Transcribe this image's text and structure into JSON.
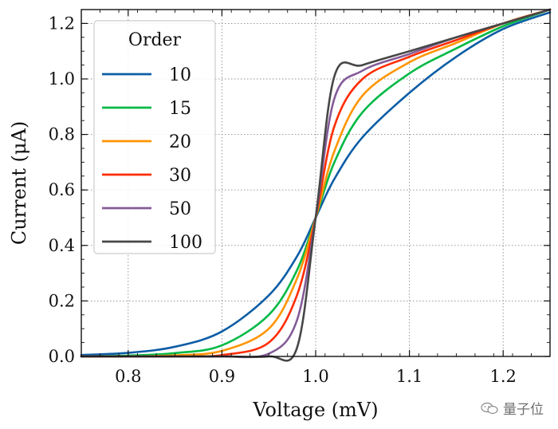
{
  "chart_data": {
    "type": "line",
    "xlabel": "Voltage (mV)",
    "ylabel": "Current (μA)",
    "xlim": [
      0.75,
      1.25
    ],
    "ylim": [
      0.0,
      1.25
    ],
    "xticks": [
      "0.8",
      "0.9",
      "1.0",
      "1.1",
      "1.2"
    ],
    "yticks": [
      "0.0",
      "0.2",
      "0.4",
      "0.6",
      "0.8",
      "1.0",
      "1.2"
    ],
    "grid": true,
    "legend": {
      "title": "Order",
      "position": "upper-left"
    },
    "x": [
      0.75,
      0.8,
      0.85,
      0.9,
      0.95,
      0.98,
      1.0,
      1.02,
      1.05,
      1.1,
      1.15,
      1.2,
      1.25
    ],
    "series": [
      {
        "name": "10",
        "color": "#0C5DA5",
        "values": [
          0.005,
          0.013,
          0.035,
          0.09,
          0.22,
          0.36,
          0.5,
          0.64,
          0.79,
          0.95,
          1.08,
          1.18,
          1.24
        ]
      },
      {
        "name": "15",
        "color": "#00B945",
        "values": [
          0.0,
          0.003,
          0.012,
          0.04,
          0.15,
          0.31,
          0.5,
          0.7,
          0.88,
          1.02,
          1.11,
          1.19,
          1.25
        ]
      },
      {
        "name": "20",
        "color": "#FF9500",
        "values": [
          0.0,
          0.0,
          0.004,
          0.02,
          0.1,
          0.28,
          0.5,
          0.74,
          0.94,
          1.06,
          1.13,
          1.2,
          1.25
        ]
      },
      {
        "name": "30",
        "color": "#FF2C00",
        "values": [
          0.0,
          0.0,
          0.0,
          0.005,
          0.05,
          0.22,
          0.5,
          0.83,
          1.0,
          1.08,
          1.14,
          1.2,
          1.25
        ]
      },
      {
        "name": "50",
        "color": "#845B97",
        "values": [
          0.0,
          0.0,
          0.0,
          0.0,
          0.01,
          0.13,
          0.5,
          0.93,
          1.03,
          1.09,
          1.15,
          1.2,
          1.25
        ]
      },
      {
        "name": "100",
        "color": "#474747",
        "values": [
          0.0,
          0.0,
          0.0,
          0.0,
          0.0,
          0.03,
          0.5,
          1.01,
          1.05,
          1.1,
          1.15,
          1.2,
          1.25
        ]
      }
    ]
  },
  "watermark": {
    "text": "量子位"
  }
}
